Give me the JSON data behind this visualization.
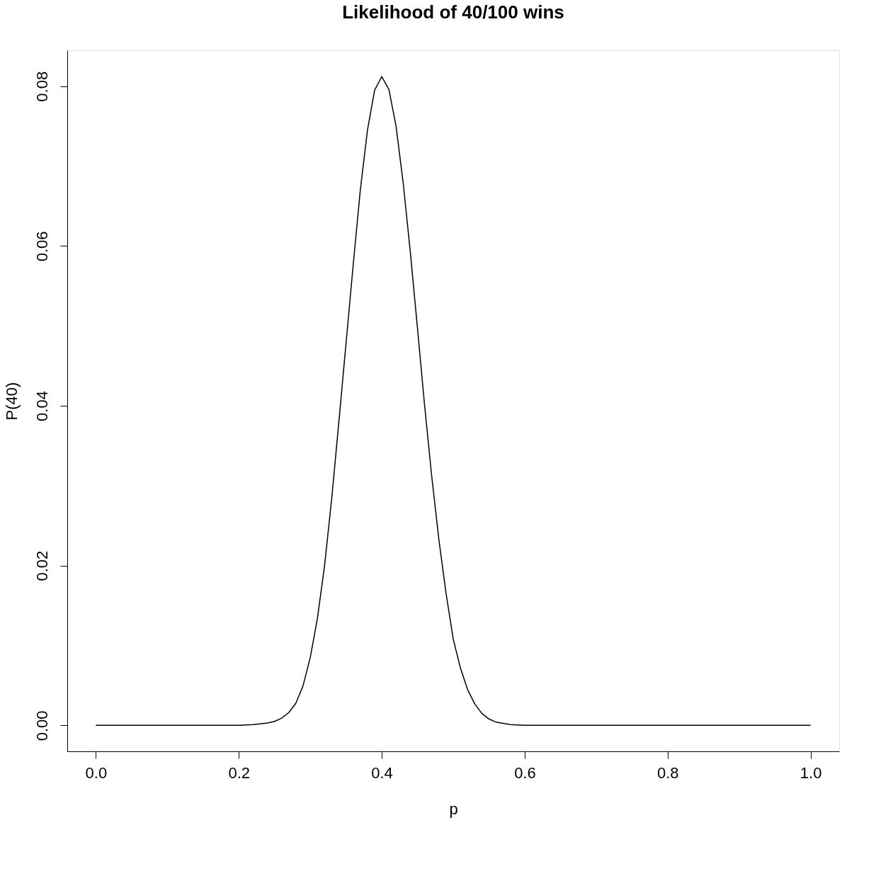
{
  "chart_data": {
    "type": "line",
    "title": "Likelihood of 40/100 wins",
    "xlabel": "p",
    "ylabel": "P(40)",
    "x": [
      0,
      0.1,
      0.2,
      0.22,
      0.24,
      0.25,
      0.26,
      0.27,
      0.28,
      0.29,
      0.3,
      0.31,
      0.32,
      0.33,
      0.34,
      0.35,
      0.36,
      0.37,
      0.38,
      0.39,
      0.4,
      0.41,
      0.42,
      0.43,
      0.44,
      0.45,
      0.46,
      0.47,
      0.48,
      0.49,
      0.5,
      0.51,
      0.52,
      0.53,
      0.54,
      0.55,
      0.56,
      0.58,
      0.6,
      0.7,
      0.8,
      0.9,
      1.0
    ],
    "series": [
      {
        "color": "#000000",
        "values": [
          0,
          0,
          0,
          0.0001,
          0.0003,
          0.0005,
          0.0009,
          0.0016,
          0.0028,
          0.005,
          0.0085,
          0.0134,
          0.02,
          0.0284,
          0.038,
          0.0478,
          0.0576,
          0.067,
          0.0745,
          0.0795,
          0.0812,
          0.0796,
          0.075,
          0.0679,
          0.0592,
          0.0497,
          0.04,
          0.0311,
          0.0232,
          0.0165,
          0.0108,
          0.0072,
          0.0045,
          0.0027,
          0.0015,
          0.0008,
          0.0004,
          0.0001,
          0,
          0,
          0,
          0,
          0
        ]
      }
    ],
    "xlim": [
      -0.04,
      1.04
    ],
    "ylim": [
      -0.00325,
      0.0845
    ],
    "xticks": [
      {
        "value": 0,
        "label": "0.0"
      },
      0.2,
      0.4,
      0.6,
      0.8,
      {
        "value": 1,
        "label": "1.0"
      }
    ],
    "yticks": [
      {
        "value": 0,
        "label": "0.00"
      },
      0.02,
      0.04,
      0.06,
      0.08
    ],
    "grid": false,
    "marker": "none",
    "line_style": "solid"
  }
}
